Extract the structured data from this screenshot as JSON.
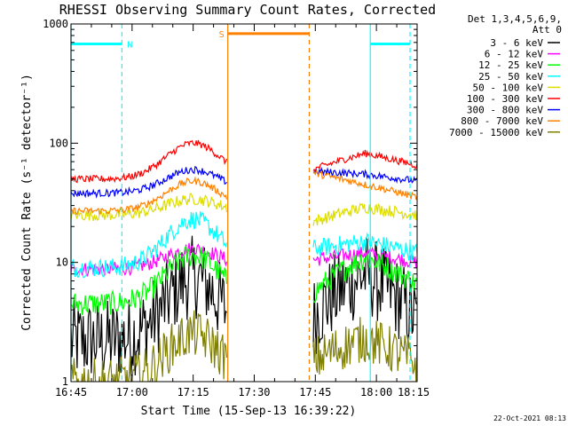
{
  "chart_data": {
    "type": "line",
    "title": "RHESSI Observing Summary Count Rates, Corrected",
    "xlabel": "Start Time (15-Sep-13 16:39:22)",
    "ylabel": "Corrected Count Rate (s⁻¹ detector⁻¹)",
    "yscale": "log",
    "ylim": [
      1,
      1000
    ],
    "xlim_minutes": [
      16.0,
      101.0
    ],
    "x_units": "minutes after 16:29",
    "x_ticks": [
      {
        "label": "16:45",
        "minutes": 16
      },
      {
        "label": "17:00",
        "minutes": 31
      },
      {
        "label": "17:15",
        "minutes": 46
      },
      {
        "label": "17:30",
        "minutes": 61
      },
      {
        "label": "17:45",
        "minutes": 76
      },
      {
        "label": "18:00",
        "minutes": 91
      },
      {
        "label": "18:15",
        "minutes": 106
      }
    ],
    "y_ticks": [
      {
        "label": "1",
        "value": 1
      },
      {
        "label": "10",
        "value": 10
      },
      {
        "label": "100",
        "value": 100
      },
      {
        "label": "1000",
        "value": 1000
      }
    ],
    "legend_header": [
      "Det 1,3,4,5,6,9,",
      "Att 0"
    ],
    "series": [
      {
        "name": "3 - 6 keV",
        "color": "#000000",
        "baseline": 2.2,
        "peak": 7.5,
        "post": [
          3.5,
          8.0,
          3.2
        ],
        "noise": 0.35
      },
      {
        "name": "6 - 12 keV",
        "color": "#ff00ff",
        "baseline": 8.8,
        "peak": 13.0,
        "post": [
          10.5,
          12.0,
          10.0
        ],
        "noise": 0.06
      },
      {
        "name": "12 - 25 keV",
        "color": "#00ff00",
        "baseline": 4.5,
        "peak": 11.5,
        "post": [
          5.5,
          11.0,
          6.5
        ],
        "noise": 0.1
      },
      {
        "name": "25 - 50 keV",
        "color": "#00ffff",
        "baseline": 9.0,
        "peak": 23.0,
        "post": [
          13.0,
          15.0,
          12.0
        ],
        "noise": 0.08
      },
      {
        "name": "50 - 100 keV",
        "color": "#dddd00",
        "baseline": 25.0,
        "peak": 34.0,
        "post": [
          22.0,
          29.0,
          25.0
        ],
        "noise": 0.05
      },
      {
        "name": "100 - 300 keV",
        "color": "#ff0000",
        "baseline": 50.0,
        "peak": 100.0,
        "post": [
          60.0,
          82.0,
          65.0
        ],
        "noise": 0.03
      },
      {
        "name": "300 - 800 keV",
        "color": "#0000ff",
        "baseline": 38.0,
        "peak": 60.0,
        "post": [
          58.0,
          55.0,
          48.0
        ],
        "noise": 0.03
      },
      {
        "name": "800 - 7000 keV",
        "color": "#ff8000",
        "baseline": 27.0,
        "peak": 48.0,
        "post": [
          56.0,
          45.0,
          35.0
        ],
        "noise": 0.03
      },
      {
        "name": "7000 - 15000 keV",
        "color": "#808000",
        "baseline": 1.0,
        "peak": 2.5,
        "post": [
          1.5,
          2.3,
          1.4
        ],
        "noise": 0.2
      }
    ],
    "annotations": [
      {
        "label": "N",
        "kind": "night",
        "color": "#00ffff",
        "interval_minutes": [
          16.0,
          28.5
        ]
      },
      {
        "label": "S",
        "kind": "saa",
        "color": "#ff8000",
        "interval_minutes": [
          54.5,
          74.5
        ]
      },
      {
        "label": "",
        "kind": "night",
        "color": "#00ffff",
        "interval_minutes": [
          89.5,
          101.0
        ]
      }
    ],
    "data_gaps_minutes": [
      [
        54.5,
        75.5
      ]
    ],
    "annotation_levels": {
      "night": 680,
      "saa": 830
    },
    "footer_date": "22-Oct-2021 08:13"
  }
}
